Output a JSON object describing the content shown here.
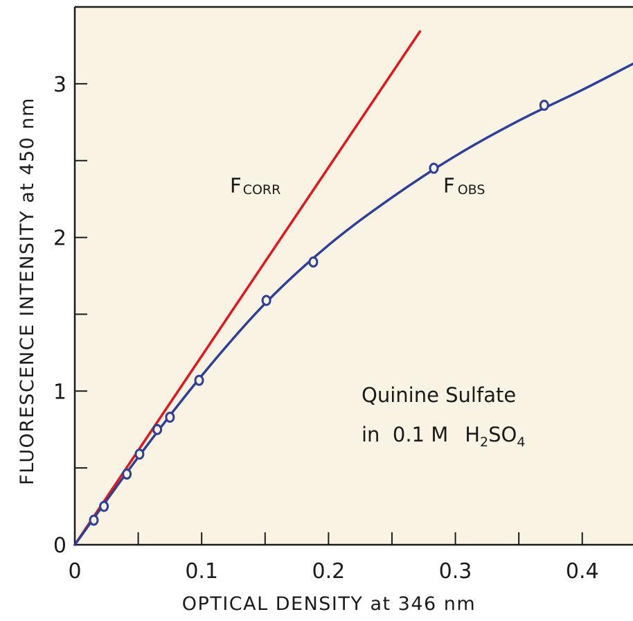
{
  "chart_data": {
    "type": "line",
    "title": "",
    "xlabel": "OPTICAL DENSITY at 346 nm",
    "ylabel": "FLUORESCENCE INTENSITY at 450 nm",
    "xlim": [
      0,
      0.44
    ],
    "ylim": [
      0,
      3.5
    ],
    "x_ticks": [
      "0",
      "0.1",
      "0.2",
      "0.3",
      "0.4"
    ],
    "y_ticks": [
      "0",
      "1",
      "2",
      "3"
    ],
    "grid": false,
    "background_color": "#f8f3e3",
    "series": [
      {
        "name_main": "F",
        "name_sub": "CORR",
        "color": "#e8141c",
        "style": "line",
        "x": [
          0,
          0.272
        ],
        "y": [
          0,
          3.34
        ]
      },
      {
        "name_main": "F",
        "name_sub": "OBS",
        "color": "#2d3f9a",
        "style": "line-with-markers",
        "marker": "open-circle",
        "x": [
          0.015,
          0.023,
          0.041,
          0.051,
          0.065,
          0.075,
          0.098,
          0.151,
          0.188,
          0.283,
          0.37
        ],
        "y": [
          0.16,
          0.25,
          0.46,
          0.59,
          0.75,
          0.83,
          1.07,
          1.59,
          1.84,
          2.45,
          2.86
        ],
        "curve_x": [
          0,
          0.05,
          0.1,
          0.15,
          0.2,
          0.25,
          0.3,
          0.35,
          0.4,
          0.44
        ],
        "curve_y": [
          0,
          0.57,
          1.1,
          1.57,
          1.95,
          2.26,
          2.53,
          2.76,
          2.96,
          3.13
        ]
      }
    ],
    "annotation": {
      "line1": "Quinine Sulfate",
      "line2_a": "in  0.1 M",
      "line2_b": "H",
      "line2_sub1": "2",
      "line2_c": "SO",
      "line2_sub2": "4"
    }
  }
}
